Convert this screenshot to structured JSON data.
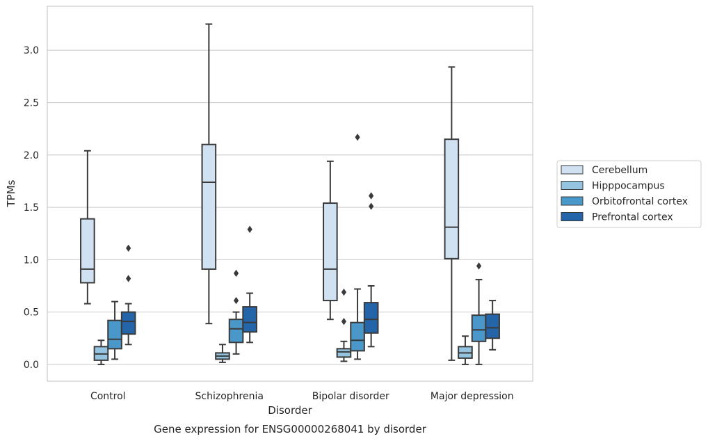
{
  "chart_data": {
    "type": "box",
    "caption": "Gene expression for ENSG00000268041 by disorder",
    "xlabel": "Disorder",
    "ylabel": "TPMs",
    "ylim": [
      -0.16,
      3.42
    ],
    "yticks": [
      0.0,
      0.5,
      1.0,
      1.5,
      2.0,
      2.5,
      3.0
    ],
    "ytick_labels": [
      "0.0",
      "0.5",
      "1.0",
      "1.5",
      "2.0",
      "2.5",
      "3.0"
    ],
    "grid": "horizontal",
    "legend_position": "right",
    "categories": [
      "Control",
      "Schizophrenia",
      "Bipolar disorder",
      "Major depression"
    ],
    "series": [
      {
        "name": "Cerebellum",
        "color": "#d0e1f2",
        "boxes": [
          {
            "whislo": 0.58,
            "q1": 0.78,
            "med": 0.91,
            "q3": 1.39,
            "whishi": 2.04,
            "fliers": []
          },
          {
            "whislo": 0.39,
            "q1": 0.91,
            "med": 1.74,
            "q3": 2.1,
            "whishi": 3.25,
            "fliers": []
          },
          {
            "whislo": 0.43,
            "q1": 0.61,
            "med": 0.91,
            "q3": 1.54,
            "whishi": 1.94,
            "fliers": []
          },
          {
            "whislo": 0.04,
            "q1": 1.01,
            "med": 1.31,
            "q3": 2.15,
            "whishi": 2.84,
            "fliers": []
          }
        ]
      },
      {
        "name": "Hipppocampus",
        "color": "#94c4df",
        "boxes": [
          {
            "whislo": 0.0,
            "q1": 0.04,
            "med": 0.1,
            "q3": 0.17,
            "whishi": 0.23,
            "fliers": []
          },
          {
            "whislo": 0.02,
            "q1": 0.05,
            "med": 0.08,
            "q3": 0.11,
            "whishi": 0.19,
            "fliers": []
          },
          {
            "whislo": 0.03,
            "q1": 0.07,
            "med": 0.12,
            "q3": 0.15,
            "whishi": 0.22,
            "fliers": [
              0.41,
              0.69
            ]
          },
          {
            "whislo": 0.0,
            "q1": 0.06,
            "med": 0.11,
            "q3": 0.17,
            "whishi": 0.27,
            "fliers": []
          }
        ]
      },
      {
        "name": "Orbitofrontal cortex",
        "color": "#4a98c9",
        "boxes": [
          {
            "whislo": 0.05,
            "q1": 0.15,
            "med": 0.24,
            "q3": 0.42,
            "whishi": 0.6,
            "fliers": []
          },
          {
            "whislo": 0.1,
            "q1": 0.21,
            "med": 0.34,
            "q3": 0.43,
            "whishi": 0.5,
            "fliers": [
              0.61,
              0.87
            ]
          },
          {
            "whislo": 0.05,
            "q1": 0.13,
            "med": 0.23,
            "q3": 0.4,
            "whishi": 0.72,
            "fliers": [
              2.17
            ]
          },
          {
            "whislo": 0.0,
            "q1": 0.22,
            "med": 0.33,
            "q3": 0.47,
            "whishi": 0.81,
            "fliers": [
              0.94
            ]
          }
        ]
      },
      {
        "name": "Prefrontal cortex",
        "color": "#2464a8",
        "boxes": [
          {
            "whislo": 0.19,
            "q1": 0.29,
            "med": 0.41,
            "q3": 0.5,
            "whishi": 0.58,
            "fliers": [
              0.82,
              1.11
            ]
          },
          {
            "whislo": 0.21,
            "q1": 0.31,
            "med": 0.4,
            "q3": 0.55,
            "whishi": 0.68,
            "fliers": [
              1.29
            ]
          },
          {
            "whislo": 0.17,
            "q1": 0.3,
            "med": 0.43,
            "q3": 0.59,
            "whishi": 0.75,
            "fliers": [
              1.51,
              1.61
            ]
          },
          {
            "whislo": 0.14,
            "q1": 0.25,
            "med": 0.35,
            "q3": 0.48,
            "whishi": 0.61,
            "fliers": []
          }
        ]
      }
    ]
  }
}
